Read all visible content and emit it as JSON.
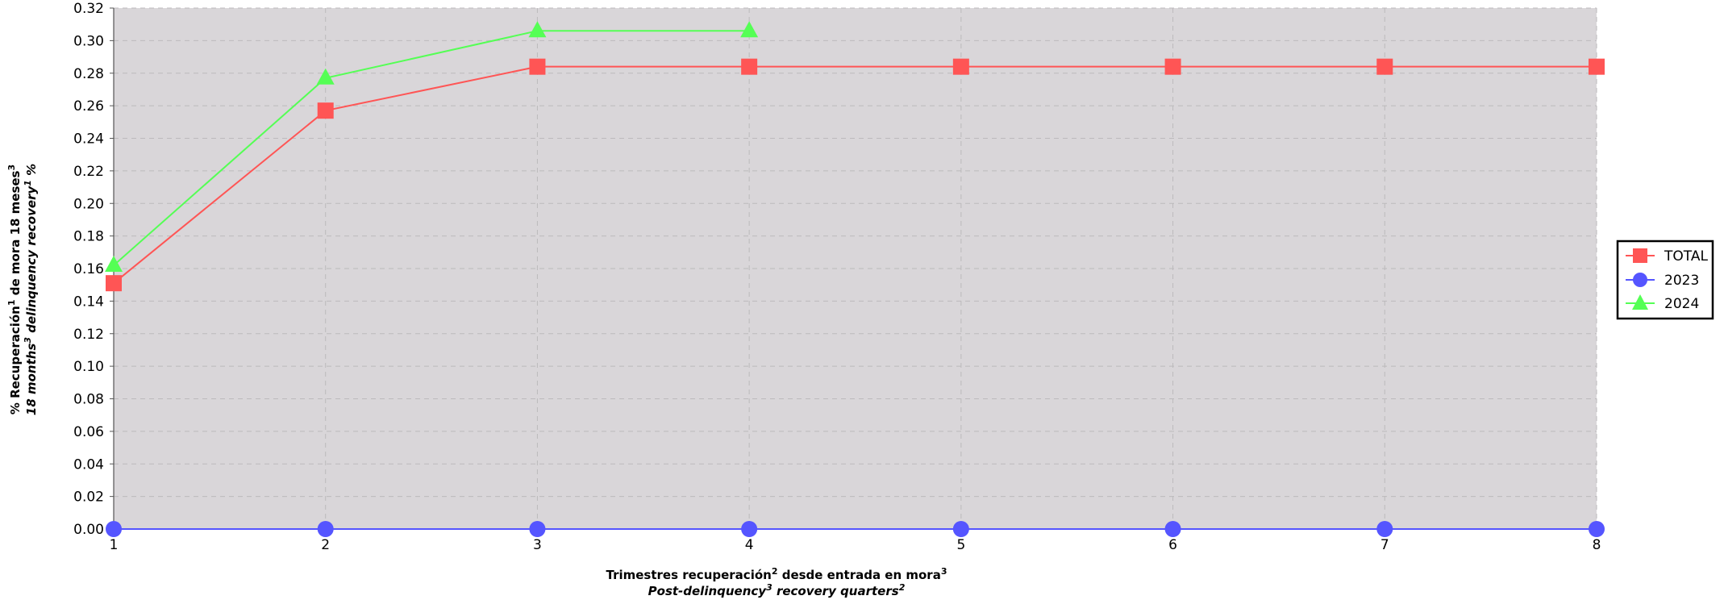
{
  "chart_data": {
    "type": "line",
    "title": "",
    "x": [
      1,
      2,
      3,
      4,
      5,
      6,
      7,
      8
    ],
    "xlim": [
      1,
      8
    ],
    "ylim": [
      0,
      0.32
    ],
    "y_ticks": [
      "0.00",
      "0.02",
      "0.04",
      "0.06",
      "0.08",
      "0.10",
      "0.12",
      "0.14",
      "0.16",
      "0.18",
      "0.20",
      "0.22",
      "0.24",
      "0.26",
      "0.28",
      "0.30",
      "0.32"
    ],
    "x_ticks": [
      "1",
      "2",
      "3",
      "4",
      "5",
      "6",
      "7",
      "8"
    ],
    "xlabel": {
      "line1_main": "Trimestres recuperación",
      "line1_sup1": "2",
      "line1_mid": " desde entrada en mora",
      "line1_sup2": "3",
      "line2_main": "Post-delinquency",
      "line2_sup1": "3",
      "line2_mid": " recovery quarters",
      "line2_sup2": "2"
    },
    "ylabel": {
      "line1_a": "% Recuperación",
      "line1_sup1": "1",
      "line1_b": " de mora 18 meses",
      "line1_sup2": "3",
      "line2_a": "18 months",
      "line2_sup1": "3",
      "line2_b": " delinquency recovery",
      "line2_sup2": "1",
      "line2_c": " %"
    },
    "grid": true,
    "background_color": "#d9d6d9",
    "legend_position": "right",
    "series": [
      {
        "name": "TOTAL",
        "color": "#ff5555",
        "marker": "square",
        "x": [
          1,
          2,
          3,
          4,
          5,
          6,
          7,
          8
        ],
        "values": [
          0.151,
          0.257,
          0.284,
          0.284,
          0.284,
          0.284,
          0.284,
          0.284
        ]
      },
      {
        "name": "2023",
        "color": "#5555ff",
        "marker": "circle",
        "x": [
          1,
          2,
          3,
          4,
          5,
          6,
          7,
          8
        ],
        "values": [
          0,
          0,
          0,
          0,
          0,
          0,
          0,
          0
        ]
      },
      {
        "name": "2024",
        "color": "#55ff55",
        "marker": "triangle",
        "x": [
          1,
          2,
          3,
          4
        ],
        "values": [
          0.162,
          0.277,
          0.306,
          0.306
        ]
      }
    ]
  }
}
